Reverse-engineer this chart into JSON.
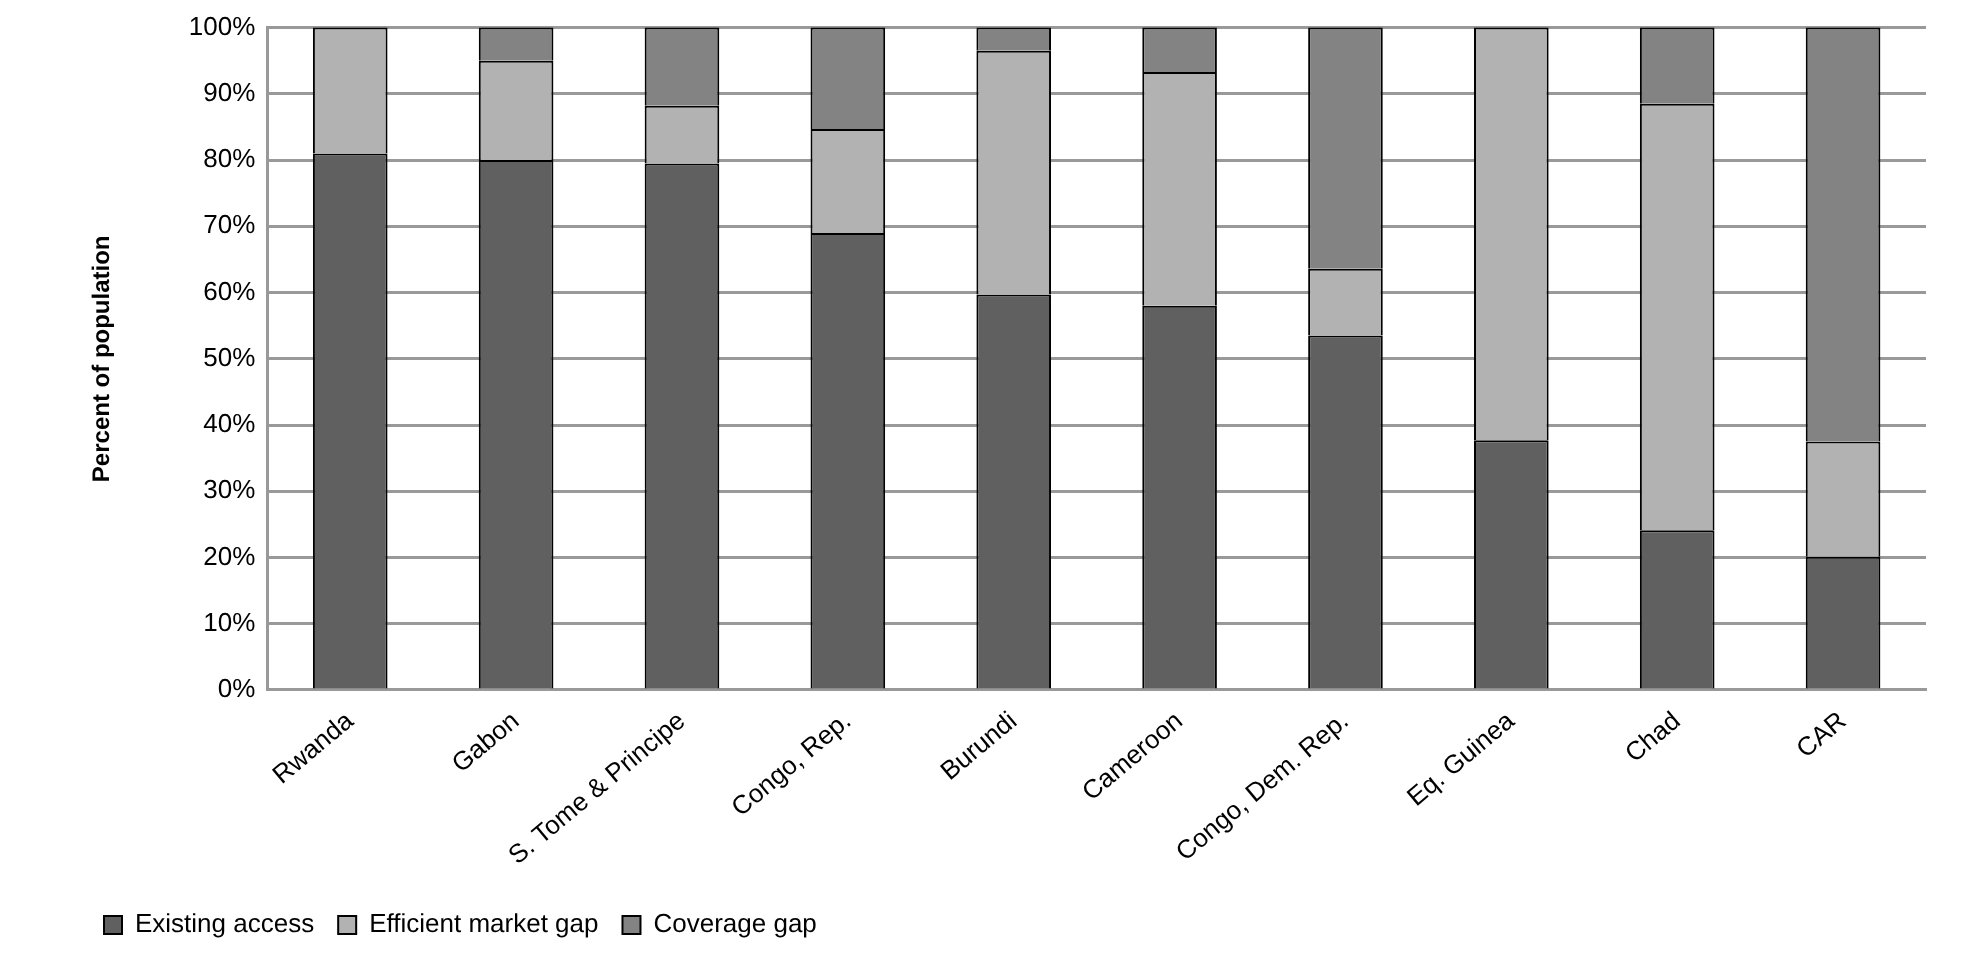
{
  "chart_data": {
    "type": "bar",
    "stacked": true,
    "ylabel": "Percent of population",
    "categories": [
      "Rwanda",
      "Gabon",
      "S. Tome & Principe",
      "Congo, Rep.",
      "Burundi",
      "Cameroon",
      "Congo, Dem. Rep.",
      "Eq. Guinea",
      "Chad",
      "CAR"
    ],
    "series": [
      {
        "name": "Existing access",
        "color": "#606060",
        "values": [
          81,
          80,
          79.5,
          69,
          59.7,
          58,
          53.5,
          37.7,
          24.1,
          20.1
        ]
      },
      {
        "name": "Efficient market gap",
        "color": "#b2b2b2",
        "values": [
          19,
          15,
          8.7,
          15.7,
          36.8,
          35.3,
          10.1,
          62.3,
          64.4,
          17.4
        ]
      },
      {
        "name": "Coverage gap",
        "color": "#838383",
        "values": [
          0,
          5,
          11.8,
          15.3,
          3.5,
          6.7,
          36.4,
          0,
          11.5,
          62.5
        ]
      }
    ],
    "ylim": [
      0,
      100
    ],
    "yticks": [
      {
        "value": 0,
        "label": "0%"
      },
      {
        "value": 10,
        "label": "10%"
      },
      {
        "value": 20,
        "label": "20%"
      },
      {
        "value": 30,
        "label": "30%"
      },
      {
        "value": 40,
        "label": "40%"
      },
      {
        "value": 50,
        "label": "50%"
      },
      {
        "value": 60,
        "label": "60%"
      },
      {
        "value": 70,
        "label": "70%"
      },
      {
        "value": 80,
        "label": "80%"
      },
      {
        "value": 90,
        "label": "90%"
      },
      {
        "value": 100,
        "label": "100%"
      }
    ],
    "grid": "y",
    "legend": "bottom left"
  }
}
